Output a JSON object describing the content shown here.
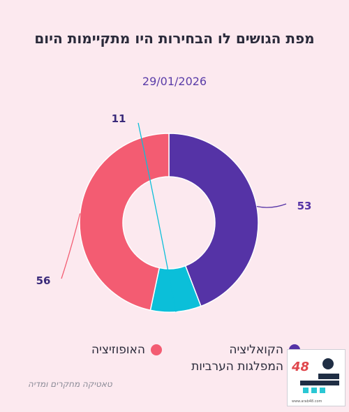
{
  "header": {
    "title": "מפת הגושים לו הבחירות היו מתקיימות היום",
    "date": "29/01/2026"
  },
  "chart_data": {
    "type": "pie",
    "donut": true,
    "categories": [
      "הקואליציה",
      "המפלגות הערביות",
      "האופוזיציה"
    ],
    "values": [
      53,
      11,
      56
    ],
    "colors": [
      "#5533a6",
      "#0bbfd9",
      "#f35c72"
    ],
    "legend": [
      {
        "label": "הקואליציה",
        "sublabel": "המפלגות הערביות",
        "color": "#5533a6"
      },
      {
        "label": "האופוזיציה",
        "color": "#f35c72"
      }
    ],
    "data_labels": [
      "53",
      "11",
      "56"
    ]
  },
  "footer": {
    "source": "טאטיקה מחקרים ומדיה",
    "logo_number": "48",
    "logo_url": "www.arab48.com"
  },
  "colors": {
    "background": "#fce9ef",
    "label_coalition": "#5533a6",
    "label_arab": "#3a2a7a",
    "label_opposition": "#3a2a7a"
  }
}
